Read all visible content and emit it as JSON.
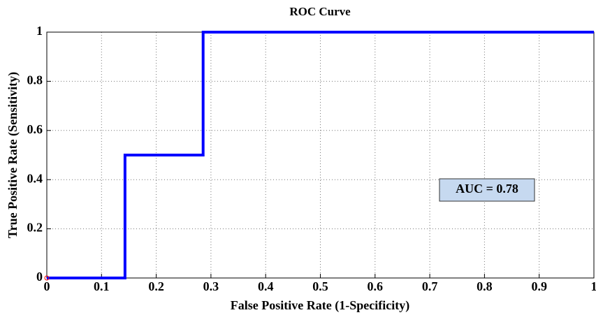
{
  "chart_data": {
    "type": "line",
    "title": "ROC Curve",
    "x_label": "False Positive Rate (1-Specificity)",
    "y_label": "True Positive Rate (Sensitivity)",
    "x": [
      0,
      0.1429,
      0.1429,
      0.2857,
      0.2857,
      1
    ],
    "values": [
      0,
      0,
      0.5,
      0.5,
      1,
      1
    ],
    "color": "#0000ff",
    "start_marker_color": "#ff0000",
    "xlim": [
      0,
      1
    ],
    "ylim": [
      0,
      1
    ],
    "xticks": [
      0,
      0.1,
      0.2,
      0.3,
      0.4,
      0.5,
      0.6,
      0.7,
      0.8,
      0.9,
      1
    ],
    "yticks": [
      0,
      0.2,
      0.4,
      0.6,
      0.8,
      1
    ],
    "grid": true,
    "annotation": "AUC = 0.78"
  }
}
